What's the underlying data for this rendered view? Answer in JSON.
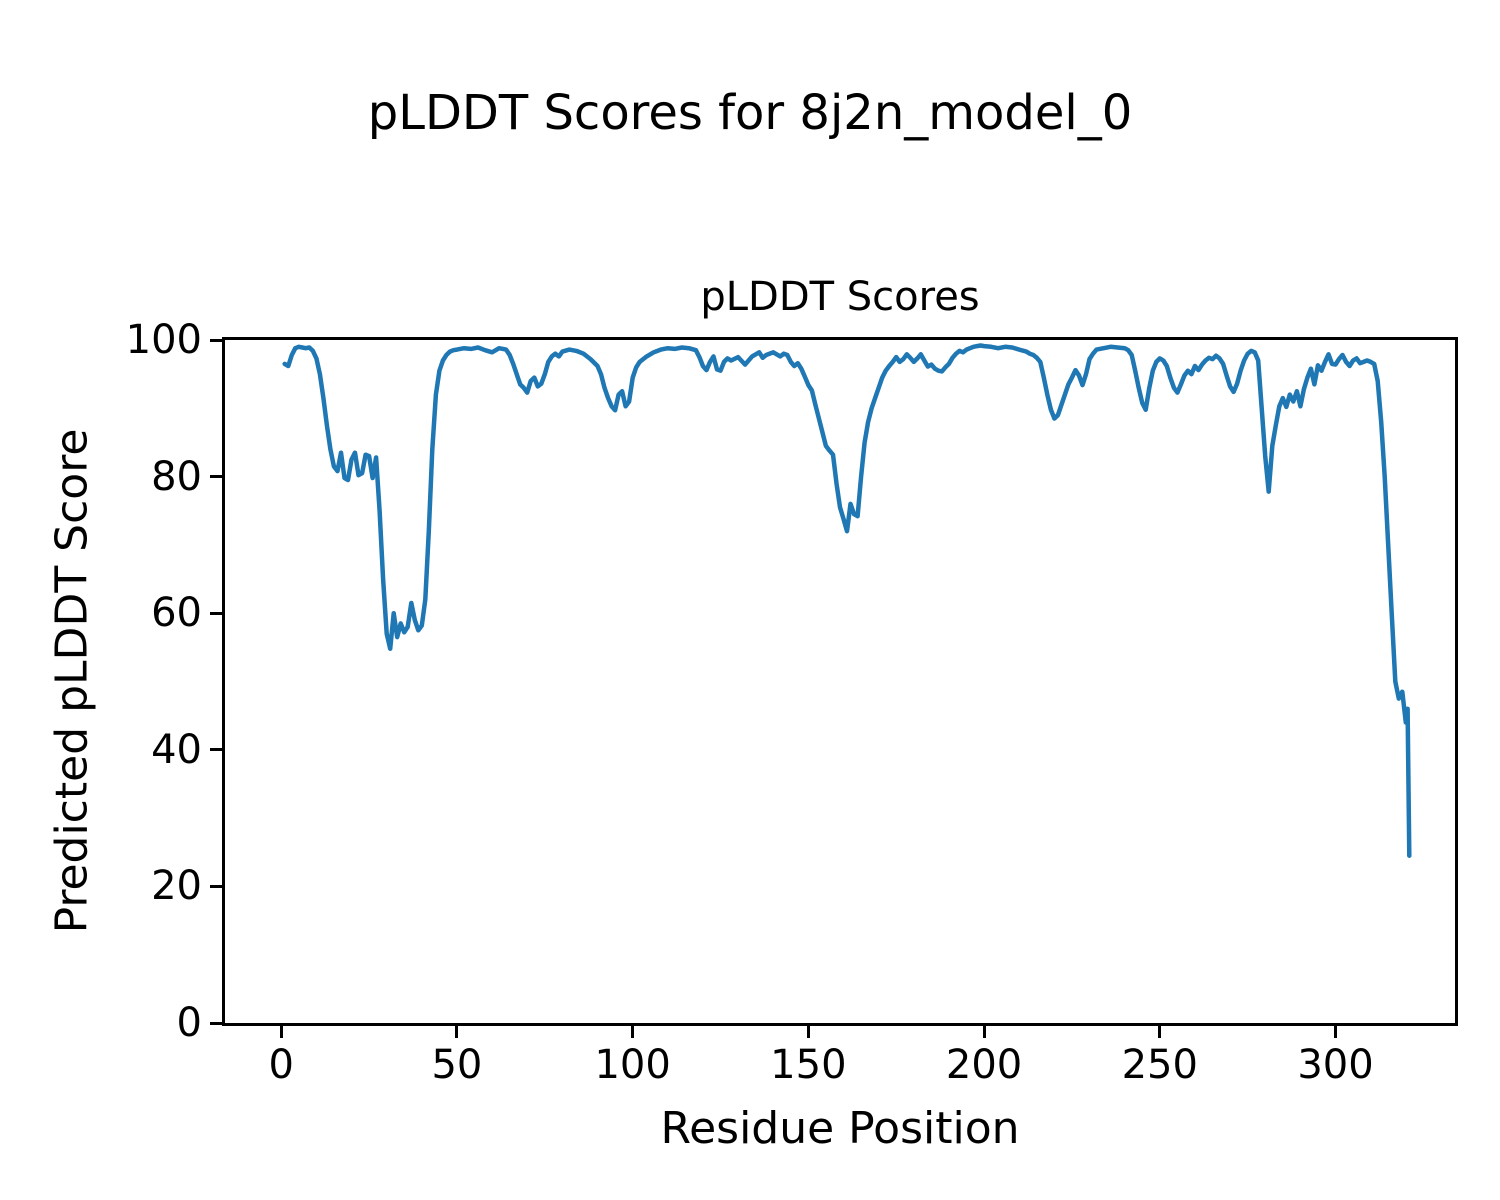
{
  "figure": {
    "suptitle": "pLDDT Scores for 8j2n_model_0",
    "background": "#ffffff"
  },
  "chart_data": {
    "type": "line",
    "title": "pLDDT Scores",
    "xlabel": "Residue Position",
    "ylabel": "Predicted pLDDT Score",
    "xlim": [
      -16,
      334
    ],
    "ylim": [
      0,
      100
    ],
    "xticks": [
      0,
      50,
      100,
      150,
      200,
      250,
      300
    ],
    "yticks": [
      0,
      20,
      40,
      60,
      80,
      100
    ],
    "grid": false,
    "legend_position": "none",
    "line_color": "#1f77b4",
    "line_width": 4.5,
    "series": [
      {
        "name": "pLDDT",
        "points": [
          [
            1,
            96.5
          ],
          [
            2,
            96.2
          ],
          [
            3,
            97.8
          ],
          [
            4,
            98.8
          ],
          [
            5,
            99.0
          ],
          [
            6,
            98.9
          ],
          [
            7,
            98.8
          ],
          [
            8,
            98.9
          ],
          [
            9,
            98.4
          ],
          [
            10,
            97.3
          ],
          [
            11,
            95.0
          ],
          [
            12,
            91.5
          ],
          [
            13,
            87.5
          ],
          [
            14,
            84.0
          ],
          [
            15,
            81.5
          ],
          [
            16,
            80.8
          ],
          [
            17,
            83.5
          ],
          [
            18,
            79.8
          ],
          [
            19,
            79.5
          ],
          [
            20,
            82.5
          ],
          [
            21,
            83.5
          ],
          [
            22,
            80.2
          ],
          [
            23,
            80.5
          ],
          [
            24,
            83.2
          ],
          [
            25,
            83.0
          ],
          [
            26,
            79.8
          ],
          [
            27,
            82.8
          ],
          [
            28,
            75.0
          ],
          [
            29,
            65.0
          ],
          [
            30,
            57.0
          ],
          [
            31,
            54.8
          ],
          [
            32,
            60.0
          ],
          [
            33,
            56.5
          ],
          [
            34,
            58.5
          ],
          [
            35,
            57.2
          ],
          [
            36,
            58.0
          ],
          [
            37,
            61.5
          ],
          [
            38,
            59.0
          ],
          [
            39,
            57.5
          ],
          [
            40,
            58.2
          ],
          [
            41,
            62.0
          ],
          [
            42,
            72.0
          ],
          [
            43,
            84.0
          ],
          [
            44,
            92.0
          ],
          [
            45,
            95.5
          ],
          [
            46,
            97.0
          ],
          [
            47,
            97.8
          ],
          [
            48,
            98.3
          ],
          [
            49,
            98.5
          ],
          [
            50,
            98.6
          ],
          [
            52,
            98.8
          ],
          [
            54,
            98.7
          ],
          [
            56,
            98.9
          ],
          [
            58,
            98.5
          ],
          [
            60,
            98.2
          ],
          [
            62,
            98.8
          ],
          [
            64,
            98.6
          ],
          [
            65,
            97.8
          ],
          [
            66,
            96.5
          ],
          [
            67,
            95.0
          ],
          [
            68,
            93.5
          ],
          [
            69,
            93.0
          ],
          [
            70,
            92.3
          ],
          [
            71,
            94.0
          ],
          [
            72,
            94.5
          ],
          [
            73,
            93.2
          ],
          [
            74,
            93.6
          ],
          [
            75,
            95.0
          ],
          [
            76,
            96.8
          ],
          [
            77,
            97.6
          ],
          [
            78,
            98.0
          ],
          [
            79,
            97.6
          ],
          [
            80,
            98.3
          ],
          [
            82,
            98.6
          ],
          [
            84,
            98.4
          ],
          [
            86,
            98.0
          ],
          [
            88,
            97.2
          ],
          [
            90,
            96.2
          ],
          [
            91,
            95.0
          ],
          [
            92,
            93.0
          ],
          [
            93,
            91.5
          ],
          [
            94,
            90.3
          ],
          [
            95,
            89.7
          ],
          [
            96,
            92.0
          ],
          [
            97,
            92.5
          ],
          [
            98,
            90.3
          ],
          [
            99,
            91.0
          ],
          [
            100,
            94.5
          ],
          [
            101,
            96.0
          ],
          [
            102,
            96.8
          ],
          [
            104,
            97.6
          ],
          [
            106,
            98.2
          ],
          [
            108,
            98.6
          ],
          [
            110,
            98.8
          ],
          [
            112,
            98.7
          ],
          [
            114,
            98.9
          ],
          [
            116,
            98.8
          ],
          [
            118,
            98.5
          ],
          [
            119,
            97.5
          ],
          [
            120,
            96.2
          ],
          [
            121,
            95.6
          ],
          [
            122,
            96.8
          ],
          [
            123,
            97.6
          ],
          [
            124,
            95.7
          ],
          [
            125,
            95.5
          ],
          [
            126,
            96.8
          ],
          [
            127,
            97.3
          ],
          [
            128,
            97.0
          ],
          [
            130,
            97.5
          ],
          [
            132,
            96.4
          ],
          [
            134,
            97.6
          ],
          [
            136,
            98.2
          ],
          [
            137,
            97.4
          ],
          [
            138,
            97.8
          ],
          [
            140,
            98.2
          ],
          [
            142,
            97.6
          ],
          [
            143,
            98.0
          ],
          [
            144,
            97.8
          ],
          [
            145,
            96.8
          ],
          [
            146,
            96.2
          ],
          [
            147,
            96.6
          ],
          [
            148,
            95.8
          ],
          [
            149,
            94.6
          ],
          [
            150,
            93.4
          ],
          [
            151,
            92.6
          ],
          [
            152,
            90.5
          ],
          [
            153,
            88.5
          ],
          [
            154,
            86.5
          ],
          [
            155,
            84.5
          ],
          [
            156,
            83.8
          ],
          [
            157,
            83.2
          ],
          [
            158,
            79.0
          ],
          [
            159,
            75.5
          ],
          [
            160,
            73.8
          ],
          [
            161,
            72.0
          ],
          [
            162,
            76.0
          ],
          [
            163,
            74.5
          ],
          [
            164,
            74.2
          ],
          [
            165,
            80.0
          ],
          [
            166,
            85.0
          ],
          [
            167,
            88.0
          ],
          [
            168,
            90.0
          ],
          [
            169,
            91.5
          ],
          [
            170,
            93.0
          ],
          [
            171,
            94.5
          ],
          [
            172,
            95.5
          ],
          [
            173,
            96.2
          ],
          [
            174,
            96.8
          ],
          [
            175,
            97.5
          ],
          [
            176,
            96.8
          ],
          [
            177,
            97.2
          ],
          [
            178,
            97.9
          ],
          [
            179,
            97.4
          ],
          [
            180,
            96.8
          ],
          [
            181,
            97.3
          ],
          [
            182,
            97.9
          ],
          [
            183,
            97.0
          ],
          [
            184,
            96.1
          ],
          [
            185,
            96.4
          ],
          [
            186,
            95.8
          ],
          [
            187,
            95.5
          ],
          [
            188,
            95.4
          ],
          [
            189,
            96.0
          ],
          [
            190,
            96.5
          ],
          [
            191,
            97.4
          ],
          [
            192,
            98.0
          ],
          [
            193,
            98.4
          ],
          [
            194,
            98.2
          ],
          [
            195,
            98.6
          ],
          [
            196,
            98.8
          ],
          [
            197,
            99.0
          ],
          [
            198,
            99.1
          ],
          [
            199,
            99.2
          ],
          [
            200,
            99.1
          ],
          [
            202,
            99.0
          ],
          [
            204,
            98.8
          ],
          [
            206,
            99.0
          ],
          [
            208,
            98.9
          ],
          [
            210,
            98.6
          ],
          [
            212,
            98.3
          ],
          [
            213,
            98.0
          ],
          [
            214,
            97.8
          ],
          [
            215,
            97.4
          ],
          [
            216,
            96.8
          ],
          [
            217,
            94.5
          ],
          [
            218,
            92.0
          ],
          [
            219,
            89.8
          ],
          [
            220,
            88.5
          ],
          [
            221,
            89.0
          ],
          [
            222,
            90.5
          ],
          [
            223,
            92.0
          ],
          [
            224,
            93.5
          ],
          [
            225,
            94.5
          ],
          [
            226,
            95.6
          ],
          [
            227,
            94.8
          ],
          [
            228,
            93.4
          ],
          [
            229,
            95.0
          ],
          [
            230,
            97.2
          ],
          [
            231,
            98.0
          ],
          [
            232,
            98.6
          ],
          [
            234,
            98.8
          ],
          [
            236,
            99.0
          ],
          [
            238,
            98.9
          ],
          [
            240,
            98.8
          ],
          [
            241,
            98.5
          ],
          [
            242,
            97.8
          ],
          [
            243,
            95.5
          ],
          [
            244,
            93.0
          ],
          [
            245,
            90.8
          ],
          [
            246,
            89.8
          ],
          [
            247,
            93.0
          ],
          [
            248,
            95.5
          ],
          [
            249,
            96.8
          ],
          [
            250,
            97.3
          ],
          [
            251,
            97.0
          ],
          [
            252,
            96.2
          ],
          [
            253,
            94.5
          ],
          [
            254,
            93.0
          ],
          [
            255,
            92.3
          ],
          [
            256,
            93.5
          ],
          [
            257,
            94.8
          ],
          [
            258,
            95.5
          ],
          [
            259,
            95.0
          ],
          [
            260,
            96.2
          ],
          [
            261,
            95.6
          ],
          [
            262,
            96.4
          ],
          [
            263,
            97.0
          ],
          [
            264,
            97.4
          ],
          [
            265,
            97.2
          ],
          [
            266,
            97.7
          ],
          [
            267,
            97.3
          ],
          [
            268,
            96.5
          ],
          [
            269,
            94.8
          ],
          [
            270,
            93.2
          ],
          [
            271,
            92.4
          ],
          [
            272,
            93.6
          ],
          [
            273,
            95.5
          ],
          [
            274,
            97.0
          ],
          [
            275,
            98.0
          ],
          [
            276,
            98.4
          ],
          [
            277,
            98.2
          ],
          [
            278,
            97.0
          ],
          [
            279,
            90.0
          ],
          [
            280,
            83.0
          ],
          [
            281,
            77.8
          ],
          [
            282,
            84.5
          ],
          [
            283,
            87.5
          ],
          [
            284,
            90.3
          ],
          [
            285,
            91.5
          ],
          [
            286,
            90.2
          ],
          [
            287,
            92.0
          ],
          [
            288,
            91.0
          ],
          [
            289,
            92.5
          ],
          [
            290,
            90.3
          ],
          [
            291,
            92.8
          ],
          [
            292,
            94.5
          ],
          [
            293,
            95.8
          ],
          [
            294,
            93.5
          ],
          [
            295,
            96.3
          ],
          [
            296,
            95.5
          ],
          [
            297,
            96.8
          ],
          [
            298,
            97.9
          ],
          [
            299,
            96.5
          ],
          [
            300,
            96.4
          ],
          [
            301,
            97.2
          ],
          [
            302,
            97.8
          ],
          [
            303,
            96.8
          ],
          [
            304,
            96.2
          ],
          [
            305,
            97.0
          ],
          [
            306,
            97.3
          ],
          [
            307,
            96.6
          ],
          [
            308,
            96.8
          ],
          [
            309,
            97.0
          ],
          [
            310,
            96.8
          ],
          [
            311,
            96.5
          ],
          [
            312,
            94.0
          ],
          [
            313,
            88.0
          ],
          [
            314,
            80.0
          ],
          [
            315,
            70.0
          ],
          [
            316,
            60.0
          ],
          [
            317,
            50.0
          ],
          [
            318,
            47.5
          ],
          [
            319,
            48.5
          ],
          [
            320,
            44.0
          ],
          [
            320.5,
            46.0
          ],
          [
            321,
            24.5
          ]
        ]
      }
    ]
  }
}
